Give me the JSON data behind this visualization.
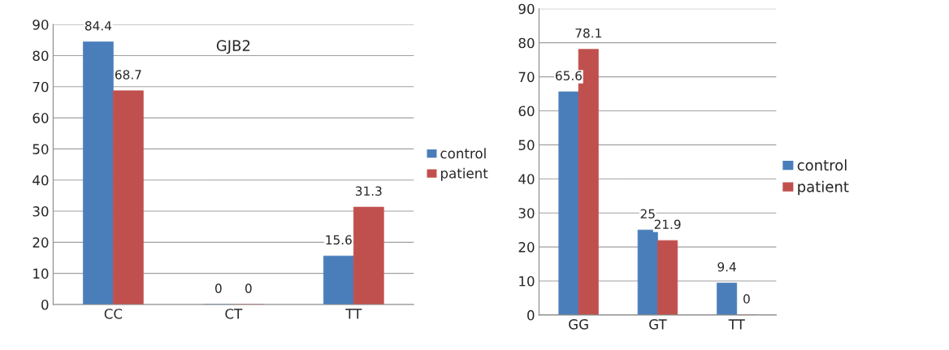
{
  "chart_data": [
    {
      "type": "bar",
      "title": "GJB2",
      "categories": [
        "CC",
        "CT",
        "TT"
      ],
      "series": [
        {
          "name": "control",
          "color": "#4a7ebb",
          "values": [
            84.4,
            0,
            15.6
          ]
        },
        {
          "name": "patient",
          "color": "#c0504d",
          "values": [
            68.7,
            0,
            31.3
          ]
        }
      ],
      "ylim": [
        0,
        90
      ],
      "yticks": [
        0,
        10,
        20,
        30,
        40,
        50,
        60,
        70,
        80,
        90
      ],
      "grid": "y",
      "legend": "right",
      "data_labels": true
    },
    {
      "type": "bar",
      "categories": [
        "GG",
        "GT",
        "TT"
      ],
      "series": [
        {
          "name": "control",
          "color": "#4a7ebb",
          "values": [
            65.6,
            25,
            9.4
          ]
        },
        {
          "name": "patient",
          "color": "#c0504d",
          "values": [
            78.1,
            21.9,
            0
          ]
        }
      ],
      "ylim": [
        0,
        90
      ],
      "yticks": [
        0,
        10,
        20,
        30,
        40,
        50,
        60,
        70,
        80,
        90
      ],
      "grid": "y",
      "legend": "right",
      "data_labels": true
    }
  ]
}
